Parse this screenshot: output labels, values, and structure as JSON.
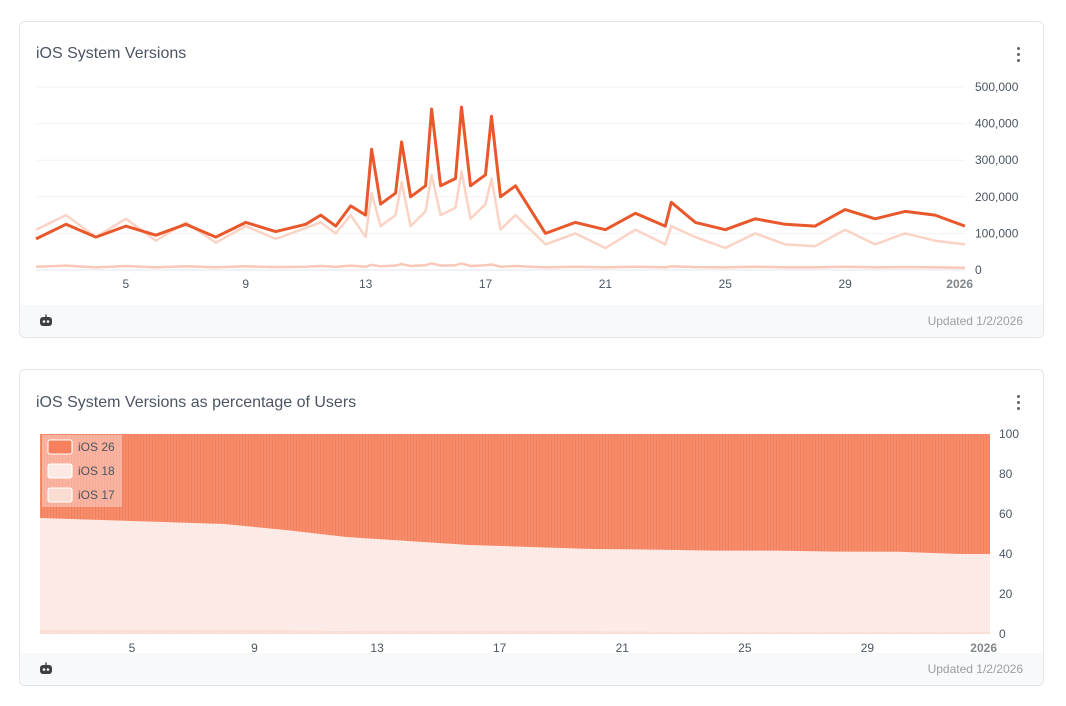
{
  "cards": [
    {
      "title": "iOS System Versions",
      "updated": "Updated 1/2/2026",
      "footer_icon": "robot-icon",
      "menu_icon": "more-vert-icon"
    },
    {
      "title": "iOS System Versions as percentage of Users",
      "updated": "Updated 1/2/2026",
      "footer_icon": "robot-icon",
      "menu_icon": "more-vert-icon"
    }
  ],
  "chart_data": [
    {
      "type": "line",
      "title": "iOS System Versions",
      "x_ticks": [
        "5",
        "9",
        "13",
        "17",
        "21",
        "25",
        "29",
        "2026"
      ],
      "y_ticks": [
        "500,000",
        "400,000",
        "300,000",
        "200,000",
        "100,000",
        "0"
      ],
      "ylim": [
        0,
        500000
      ],
      "xlim_days": [
        2,
        33
      ],
      "grid": true,
      "colors": {
        "iOS 26": "#e8582b",
        "iOS 18": "#fbd3c5",
        "iOS 17": "#f8c8b8"
      },
      "x": [
        2,
        3,
        4,
        5,
        6,
        7,
        8,
        9,
        10,
        11,
        11.5,
        12,
        12.5,
        13,
        13.2,
        13.5,
        14,
        14.2,
        14.5,
        15,
        15.2,
        15.5,
        16,
        16.2,
        16.5,
        17,
        17.2,
        17.5,
        18,
        19,
        20,
        21,
        22,
        23,
        23.2,
        24,
        25,
        26,
        27,
        28,
        29,
        30,
        31,
        32,
        33
      ],
      "series": [
        {
          "name": "iOS 26",
          "values": [
            85000,
            125000,
            90000,
            120000,
            95000,
            125000,
            90000,
            130000,
            105000,
            125000,
            150000,
            120000,
            175000,
            150000,
            330000,
            180000,
            210000,
            350000,
            200000,
            230000,
            440000,
            230000,
            250000,
            445000,
            230000,
            260000,
            420000,
            200000,
            230000,
            100000,
            130000,
            110000,
            155000,
            120000,
            185000,
            130000,
            110000,
            140000,
            125000,
            120000,
            165000,
            140000,
            160000,
            150000,
            120000
          ]
        },
        {
          "name": "iOS 18",
          "values": [
            110000,
            150000,
            90000,
            140000,
            80000,
            130000,
            75000,
            120000,
            85000,
            115000,
            130000,
            100000,
            150000,
            90000,
            210000,
            120000,
            150000,
            240000,
            120000,
            160000,
            260000,
            150000,
            170000,
            270000,
            140000,
            180000,
            250000,
            110000,
            150000,
            70000,
            100000,
            60000,
            110000,
            70000,
            120000,
            90000,
            60000,
            100000,
            70000,
            65000,
            110000,
            70000,
            100000,
            80000,
            70000
          ]
        },
        {
          "name": "iOS 17",
          "values": [
            9000,
            12000,
            7000,
            11000,
            7000,
            10000,
            7000,
            10000,
            8000,
            9000,
            11000,
            9000,
            12000,
            9000,
            14000,
            10000,
            12000,
            16000,
            11000,
            13000,
            18000,
            12000,
            13000,
            18000,
            11000,
            13000,
            15000,
            9000,
            11000,
            7000,
            9000,
            7000,
            9000,
            7000,
            10000,
            8000,
            7000,
            9000,
            7000,
            7000,
            9000,
            7000,
            8000,
            7000,
            6000
          ]
        }
      ]
    },
    {
      "type": "area",
      "title": "iOS System Versions as percentage of Users",
      "stacked": true,
      "percent": true,
      "legend_position": "top-left",
      "x_ticks": [
        "5",
        "9",
        "13",
        "17",
        "21",
        "25",
        "29",
        "2026"
      ],
      "y_ticks": [
        "100",
        "80",
        "60",
        "40",
        "20",
        "0"
      ],
      "ylim": [
        0,
        100
      ],
      "xlim_days": [
        2,
        33
      ],
      "colors": {
        "iOS 26": "#f4805e",
        "iOS 18": "#fce9e3",
        "iOS 17": "#f9ddd3"
      },
      "x": [
        2,
        4,
        6,
        8,
        10,
        12,
        14,
        16,
        18,
        20,
        22,
        24,
        26,
        28,
        30,
        32,
        33
      ],
      "series": [
        {
          "name": "iOS 17",
          "values": [
            2,
            2,
            2,
            2,
            2,
            1.5,
            1.5,
            1.5,
            1.5,
            1.5,
            1.2,
            1.2,
            1.2,
            1.2,
            1.1,
            1.0,
            1.0
          ]
        },
        {
          "name": "iOS 18",
          "values": [
            56,
            55,
            54,
            53,
            50,
            47,
            45,
            43,
            42,
            41,
            41,
            40.5,
            40.5,
            40,
            40,
            39,
            39
          ]
        },
        {
          "name": "iOS 26",
          "values": [
            42,
            43,
            44,
            45,
            48,
            51.5,
            53.5,
            55.5,
            56.5,
            57.5,
            57.8,
            58.3,
            58.3,
            58.8,
            58.9,
            60,
            60
          ]
        }
      ]
    }
  ]
}
